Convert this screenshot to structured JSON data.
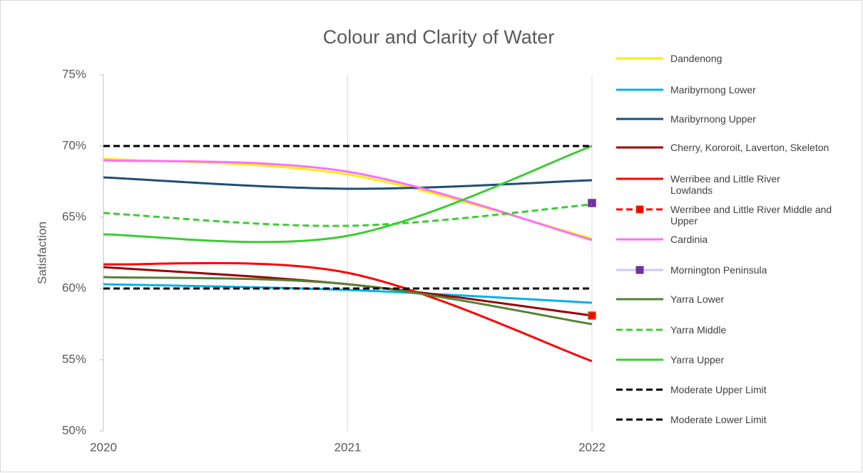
{
  "chart_data": {
    "type": "line",
    "title": "Colour and Clarity of Water",
    "y_label": "Satisfaction",
    "x": [
      2020,
      2021,
      2022
    ],
    "xlim": [
      2020,
      2022
    ],
    "xticks": [
      2020,
      2021,
      2022
    ],
    "ylim": [
      50,
      75
    ],
    "yticks": [
      {
        "value": 50,
        "label": "50%"
      },
      {
        "value": 55,
        "label": "55%"
      },
      {
        "value": 60,
        "label": "60%"
      },
      {
        "value": 65,
        "label": "65%"
      },
      {
        "value": 70,
        "label": "70%"
      },
      {
        "value": 75,
        "label": "75%"
      }
    ],
    "grid": "x",
    "legend": "right",
    "smooth": true,
    "series": [
      {
        "name": "Dandenong",
        "color": "#f5f000",
        "dash": false,
        "values": [
          69.1,
          68.0,
          63.5
        ]
      },
      {
        "name": "Maribyrnong Lower",
        "color": "#00b0f0",
        "dash": false,
        "values": [
          60.3,
          59.9,
          59.0
        ]
      },
      {
        "name": "Maribyrnong Upper",
        "color": "#1f4e79",
        "dash": false,
        "values": [
          67.8,
          67.0,
          67.6
        ]
      },
      {
        "name": "Cherry, Kororoit, Laverton, Skeleton",
        "color": "#9b0000",
        "dash": false,
        "values": [
          61.5,
          60.3,
          58.1
        ]
      },
      {
        "name": "Werribee and Little River Lowlands",
        "color": "#ff0000",
        "dash": false,
        "values": [
          61.7,
          61.1,
          54.9
        ]
      },
      {
        "name": "Werribee and Little River Middle and Upper",
        "color": "#ff0000",
        "dash": true,
        "marker": "#ff0000",
        "marker_edge": "#c55a11",
        "values": [
          null,
          null,
          58.1
        ]
      },
      {
        "name": "Cardinia",
        "color": "#ff6eff",
        "dash": false,
        "values": [
          69.0,
          68.2,
          63.4
        ]
      },
      {
        "name": "Mornington Peninsula",
        "color": "#c9c9f5",
        "dash": false,
        "marker": "#7030a0",
        "marker_edge": "#7030a0",
        "values": [
          null,
          null,
          66.0
        ]
      },
      {
        "name": "Yarra Lower",
        "color": "#548235",
        "dash": false,
        "values": [
          60.8,
          60.3,
          57.5
        ]
      },
      {
        "name": "Yarra Middle",
        "color": "#3ccc33",
        "dash": true,
        "values": [
          65.3,
          64.4,
          65.9
        ]
      },
      {
        "name": "Yarra Upper",
        "color": "#3ccc33",
        "dash": false,
        "values": [
          63.8,
          63.7,
          70.0
        ]
      },
      {
        "name": "Moderate Upper Limit",
        "color": "#000000",
        "dash": true,
        "smooth": false,
        "values": [
          70,
          70,
          70
        ]
      },
      {
        "name": "Moderate Lower Limit",
        "color": "#000000",
        "dash": true,
        "smooth": false,
        "values": [
          60,
          60,
          60
        ]
      }
    ]
  }
}
